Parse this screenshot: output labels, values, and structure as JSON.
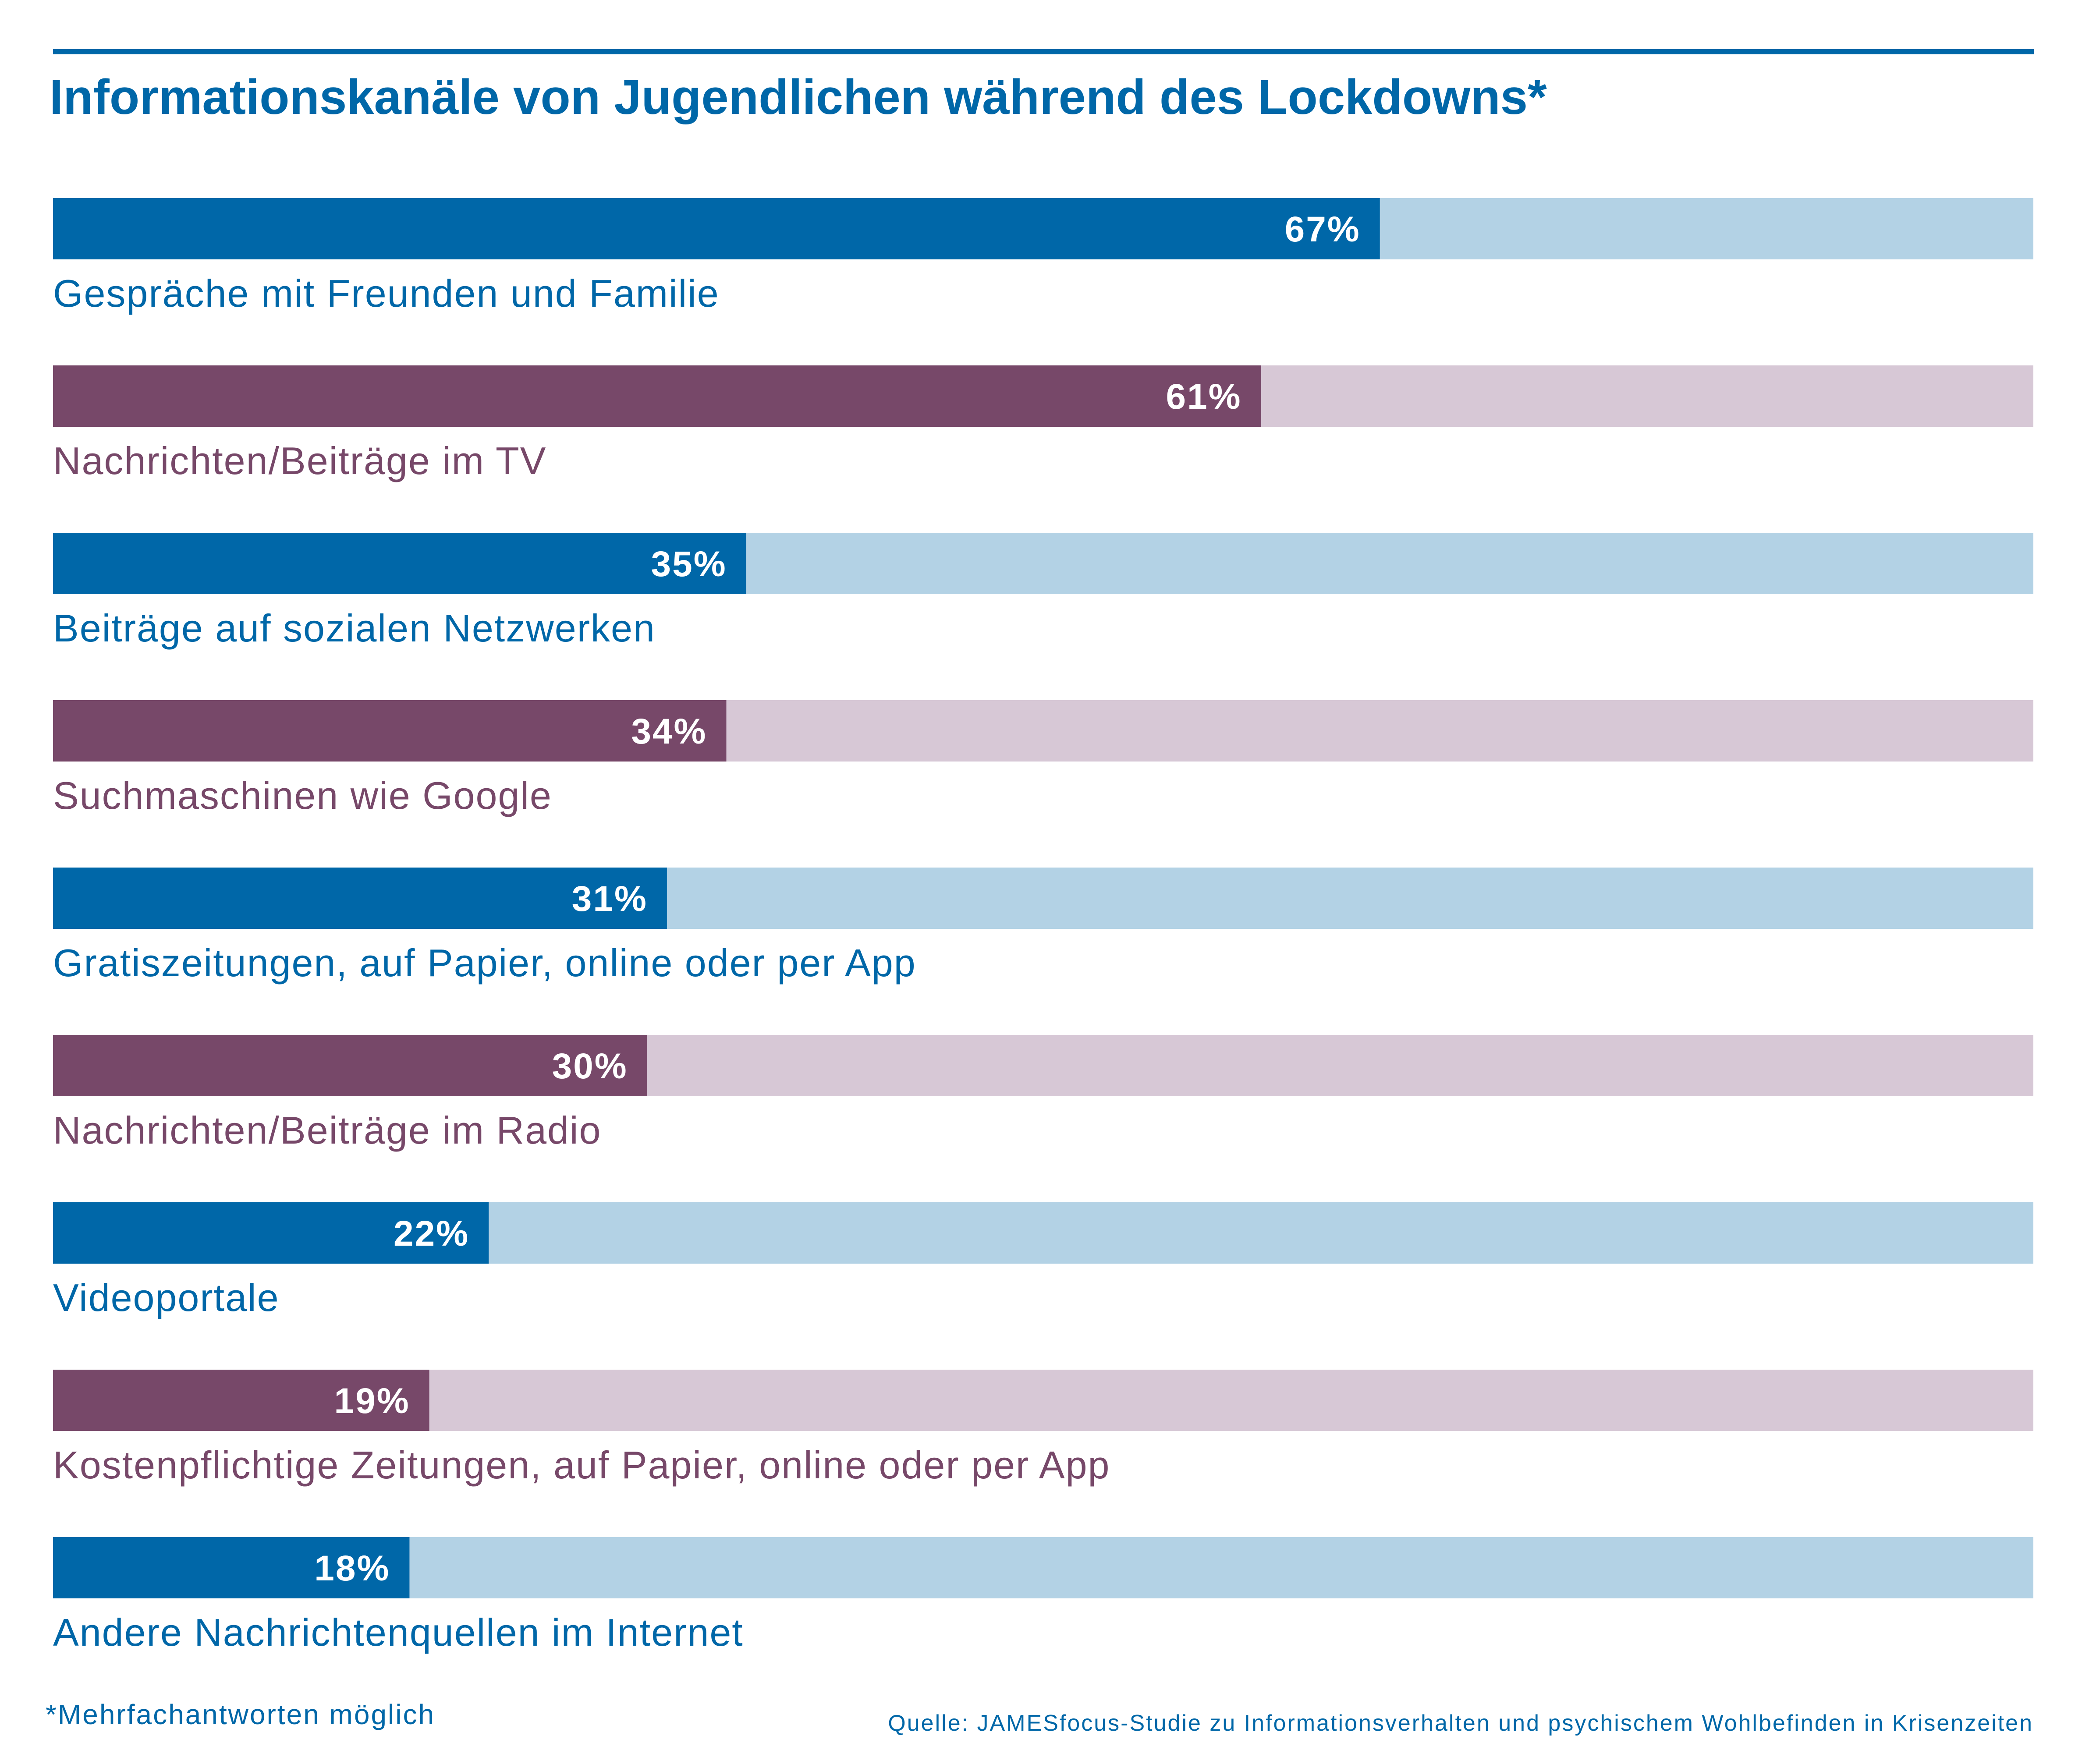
{
  "colors": {
    "blue_dark": "#0067a8",
    "blue_light": "#b3d2e5",
    "purple_dark": "#774869",
    "purple_light": "#d7c8d6",
    "title": "#0067a8",
    "footnote": "#0067a8"
  },
  "chart_data": {
    "type": "bar",
    "orientation": "horizontal",
    "title": "Informationskanäle von Jugendlichen während des Lockdowns*",
    "xlim": [
      0,
      100
    ],
    "grid": false,
    "categories": [
      "Gespräche mit Freunden und Familie",
      "Nachrichten/Beiträge im TV",
      "Beiträge auf sozialen Netzwerken",
      "Suchmaschinen wie Google",
      "Gratiszeitungen, auf Papier, online oder per App",
      "Nachrichten/Beiträge im Radio",
      "Videoportale",
      "Kostenpflichtige Zeitungen, auf Papier, online oder per App",
      "Andere Nachrichtenquellen im Internet"
    ],
    "values": [
      67,
      61,
      35,
      34,
      31,
      30,
      22,
      19,
      18
    ],
    "value_labels": [
      "67%",
      "61%",
      "35%",
      "34%",
      "31%",
      "30%",
      "22%",
      "19%",
      "18%"
    ],
    "bar_colors": [
      "blue",
      "purple",
      "blue",
      "purple",
      "blue",
      "purple",
      "blue",
      "purple",
      "blue"
    ]
  },
  "footnote": "*Mehrfachantworten möglich",
  "source": "Quelle: JAMESfocus-Studie zu Informationsverhalten und psychischem Wohlbefinden in Krisenzeiten"
}
